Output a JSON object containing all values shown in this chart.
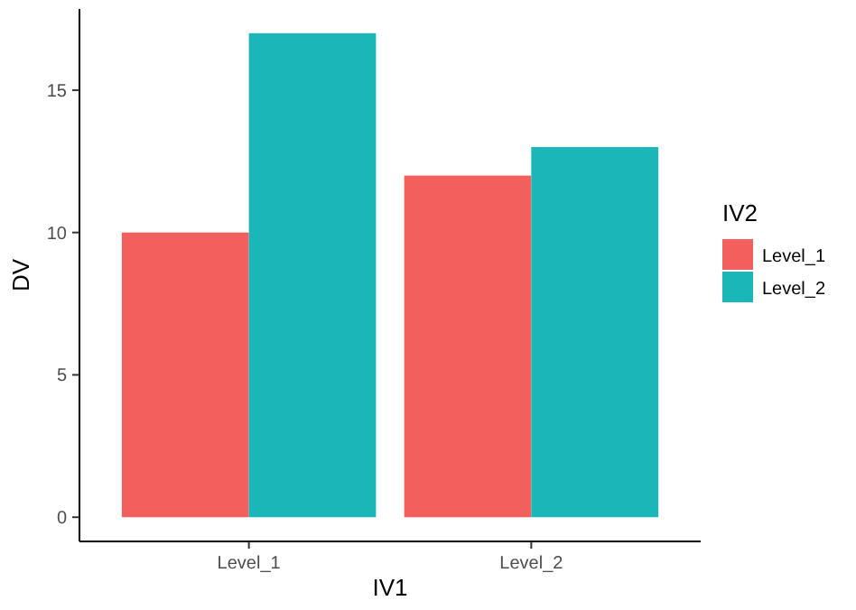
{
  "chart_data": {
    "type": "bar",
    "xlabel": "IV1",
    "ylabel": "DV",
    "legend_title": "IV2",
    "categories": [
      "Level_1",
      "Level_2"
    ],
    "series": [
      {
        "name": "Level_1",
        "color": "#f25f5c",
        "values": [
          10,
          12
        ]
      },
      {
        "name": "Level_2",
        "color": "#1ab6b8",
        "values": [
          17,
          13
        ]
      }
    ],
    "ylim": [
      -0.85,
      17.85
    ],
    "yticks": [
      0,
      5,
      10,
      15
    ],
    "grid": false,
    "legend": "right"
  }
}
